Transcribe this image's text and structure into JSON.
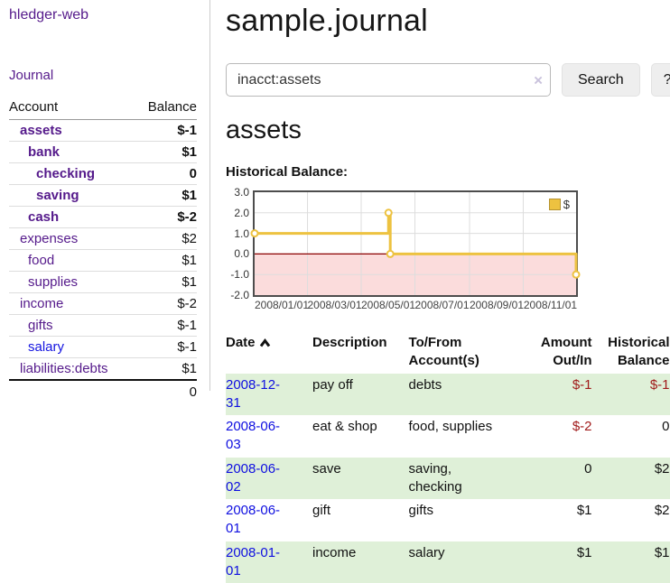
{
  "colors": {
    "link_purple": "#551a8b",
    "link_blue": "#1414e0",
    "negative_strong": "#a01a1a",
    "negative_light": "#c07b80",
    "row_stripe_green": "#dff0d8",
    "chart_line_gold": "#edc240",
    "chart_negative_fill": "#fbdcdc",
    "chart_zero_line": "#8b0000"
  },
  "sidebar": {
    "app_title": "hledger-web",
    "nav_journal": "Journal",
    "accounts_table": {
      "headers": [
        "Account",
        "Balance"
      ],
      "rows": [
        {
          "name": "assets",
          "indent": 0,
          "bold": true,
          "color": "purple",
          "balance": "$-1",
          "balance_class": "neg-strong"
        },
        {
          "name": "bank",
          "indent": 1,
          "bold": true,
          "color": "purple",
          "balance": "$1",
          "balance_class": ""
        },
        {
          "name": "checking",
          "indent": 2,
          "bold": true,
          "color": "purple",
          "balance": "0",
          "balance_class": ""
        },
        {
          "name": "saving",
          "indent": 2,
          "bold": true,
          "color": "purple",
          "balance": "$1",
          "balance_class": ""
        },
        {
          "name": "cash",
          "indent": 1,
          "bold": true,
          "color": "purple",
          "balance": "$-2",
          "balance_class": "neg-strong"
        },
        {
          "name": "expenses",
          "indent": 0,
          "bold": false,
          "color": "purple",
          "balance": "$2",
          "balance_class": ""
        },
        {
          "name": "food",
          "indent": 1,
          "bold": false,
          "color": "purple",
          "balance": "$1",
          "balance_class": ""
        },
        {
          "name": "supplies",
          "indent": 1,
          "bold": false,
          "color": "purple",
          "balance": "$1",
          "balance_class": ""
        },
        {
          "name": "income",
          "indent": 0,
          "bold": false,
          "color": "purple",
          "balance": "$-2",
          "balance_class": "neg-light"
        },
        {
          "name": "gifts",
          "indent": 1,
          "bold": false,
          "color": "purple",
          "balance": "$-1",
          "balance_class": "neg-light"
        },
        {
          "name": "salary",
          "indent": 1,
          "bold": false,
          "color": "blue",
          "balance": "$-1",
          "balance_class": "neg-light"
        },
        {
          "name": "liabilities:debts",
          "indent": 0,
          "bold": false,
          "color": "purple",
          "balance": "$1",
          "balance_class": ""
        }
      ],
      "total": "0"
    }
  },
  "main": {
    "title": "sample.journal",
    "search": {
      "value": "inacct:assets",
      "clear_icon": "×",
      "button_label": "Search",
      "help_button_label": "?"
    },
    "account_heading": "assets",
    "chart_label": "Historical Balance:",
    "transactions": {
      "headers": [
        "Date",
        "Description",
        "To/From Account(s)",
        "Amount Out/In",
        "Historical Balance"
      ],
      "sort_icon": "chevron-up",
      "sorted_column": "Date",
      "rows": [
        {
          "date": "2008-12-31",
          "description": "pay off",
          "accounts": "debts",
          "amount": "$-1",
          "amount_negative": true,
          "balance": "$-1",
          "balance_negative": true
        },
        {
          "date": "2008-06-03",
          "description": "eat & shop",
          "accounts": "food, supplies",
          "amount": "$-2",
          "amount_negative": true,
          "balance": "0",
          "balance_negative": false
        },
        {
          "date": "2008-06-02",
          "description": "save",
          "accounts": "saving, checking",
          "amount": "0",
          "amount_negative": false,
          "balance": "$2",
          "balance_negative": false
        },
        {
          "date": "2008-06-01",
          "description": "gift",
          "accounts": "gifts",
          "amount": "$1",
          "amount_negative": false,
          "balance": "$2",
          "balance_negative": false
        },
        {
          "date": "2008-01-01",
          "description": "income",
          "accounts": "salary",
          "amount": "$1",
          "amount_negative": false,
          "balance": "$1",
          "balance_negative": false
        }
      ]
    }
  },
  "chart_data": {
    "type": "line",
    "title": "Historical Balance",
    "step": true,
    "series": [
      {
        "name": "$",
        "x": [
          "2008-01-01",
          "2008-06-01",
          "2008-06-03",
          "2008-12-31"
        ],
        "y": [
          1,
          2,
          0,
          -1
        ],
        "color": "#edc240"
      }
    ],
    "xrange": [
      "2008-01-01",
      "2008-12-31"
    ],
    "ylim": [
      -2,
      3
    ],
    "yticks": [
      3,
      2,
      1,
      0,
      -1,
      -2
    ],
    "xticks": [
      "2008/01/01",
      "2008/03/01",
      "2008/05/01",
      "2008/07/01",
      "2008/09/01",
      "2008/11/01"
    ],
    "grid": true,
    "zero_line_color": "#8b0000",
    "negative_fill": "#fbdcdc",
    "legend": {
      "label": "$",
      "position": "top-right",
      "marker_color": "#edc240"
    }
  }
}
